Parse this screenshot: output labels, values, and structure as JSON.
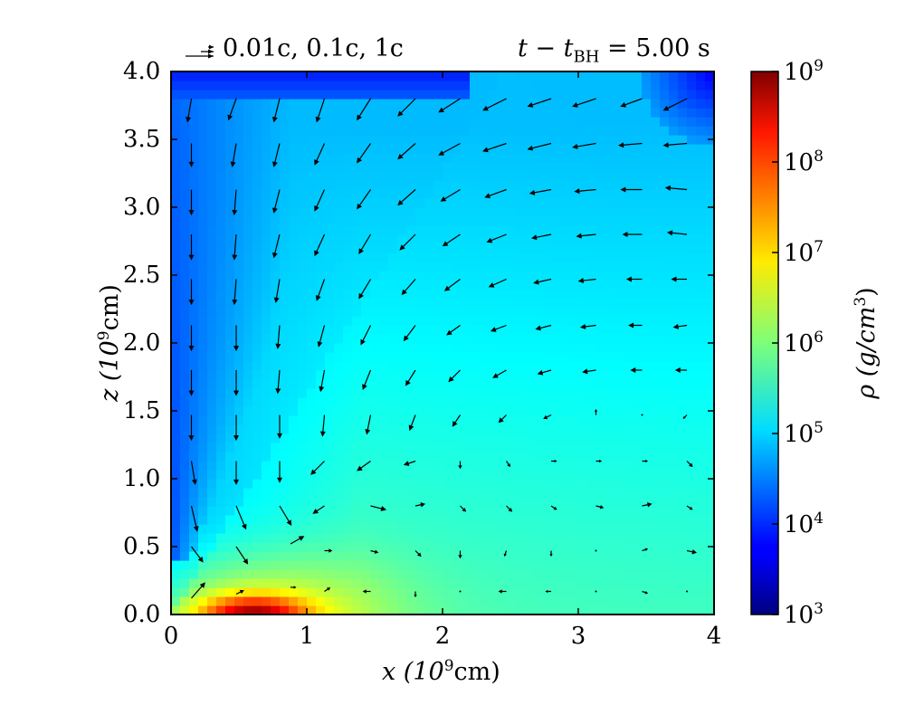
{
  "chart_data": {
    "type": "heatmap",
    "title_left": "0.01c, 0.1c, 1c",
    "title_right": "t − t",
    "title_right_sub": "BH",
    "title_right_value": "= 5.00 s",
    "xlabel": "x (10",
    "xlabel_sup": "9",
    "xlabel_unit": "cm)",
    "ylabel": "z (10",
    "ylabel_sup": "9",
    "ylabel_unit": "cm)",
    "xlim": [
      0,
      4
    ],
    "ylim": [
      0,
      4
    ],
    "xticks": [
      "0",
      "1",
      "2",
      "3",
      "4"
    ],
    "yticks": [
      "0.0",
      "0.5",
      "1.0",
      "1.5",
      "2.0",
      "2.5",
      "3.0",
      "3.5",
      "4.0"
    ],
    "colorbar": {
      "label": "ρ (g/cm",
      "label_sup": "3",
      "label_close": ")",
      "scale": "log",
      "range": [
        3,
        9
      ],
      "tick_exponents": [
        3,
        4,
        5,
        6,
        7,
        8,
        9
      ],
      "tick_base": "10",
      "colormap": "jet"
    },
    "density_log10_field": {
      "description_keys": [
        "background",
        "dense_core",
        "low_density_jet",
        "upper_corner"
      ],
      "background_upper": 4.85,
      "background_lower_right": 5.6,
      "core_peak": 8.7,
      "core_center": [
        0.6,
        0.0
      ],
      "jet_min": 4.15,
      "upper_left_min": 4.3,
      "upper_right_corner_min": 3.7
    },
    "velocity_arrows": [
      {
        "x": 0.15,
        "z": 3.8,
        "vx": -0.002,
        "vz": -0.012
      },
      {
        "x": 0.48,
        "z": 3.8,
        "vx": -0.004,
        "vz": -0.011
      },
      {
        "x": 0.8,
        "z": 3.8,
        "vx": -0.003,
        "vz": -0.012
      },
      {
        "x": 1.13,
        "z": 3.8,
        "vx": -0.004,
        "vz": -0.012
      },
      {
        "x": 1.47,
        "z": 3.8,
        "vx": -0.007,
        "vz": -0.011
      },
      {
        "x": 1.8,
        "z": 3.8,
        "vx": -0.009,
        "vz": -0.009
      },
      {
        "x": 2.13,
        "z": 3.8,
        "vx": -0.011,
        "vz": -0.007
      },
      {
        "x": 2.47,
        "z": 3.8,
        "vx": -0.012,
        "vz": -0.006
      },
      {
        "x": 2.8,
        "z": 3.8,
        "vx": -0.012,
        "vz": -0.004
      },
      {
        "x": 3.13,
        "z": 3.8,
        "vx": -0.012,
        "vz": -0.004
      },
      {
        "x": 3.47,
        "z": 3.8,
        "vx": -0.011,
        "vz": -0.004
      },
      {
        "x": 3.8,
        "z": 3.8,
        "vx": -0.012,
        "vz": -0.006
      },
      {
        "x": 0.15,
        "z": 3.47,
        "vx": 0.0,
        "vz": -0.012
      },
      {
        "x": 0.48,
        "z": 3.47,
        "vx": -0.002,
        "vz": -0.012
      },
      {
        "x": 0.8,
        "z": 3.47,
        "vx": -0.003,
        "vz": -0.012
      },
      {
        "x": 1.13,
        "z": 3.47,
        "vx": -0.005,
        "vz": -0.011
      },
      {
        "x": 1.47,
        "z": 3.47,
        "vx": -0.007,
        "vz": -0.01
      },
      {
        "x": 1.8,
        "z": 3.47,
        "vx": -0.009,
        "vz": -0.008
      },
      {
        "x": 2.13,
        "z": 3.47,
        "vx": -0.011,
        "vz": -0.006
      },
      {
        "x": 2.47,
        "z": 3.47,
        "vx": -0.012,
        "vz": -0.004
      },
      {
        "x": 2.8,
        "z": 3.47,
        "vx": -0.012,
        "vz": -0.003
      },
      {
        "x": 3.13,
        "z": 3.47,
        "vx": -0.012,
        "vz": -0.002
      },
      {
        "x": 3.47,
        "z": 3.47,
        "vx": -0.012,
        "vz": -0.001
      },
      {
        "x": 3.8,
        "z": 3.47,
        "vx": -0.012,
        "vz": -0.001
      },
      {
        "x": 0.15,
        "z": 3.13,
        "vx": 0.0,
        "vz": -0.013
      },
      {
        "x": 0.48,
        "z": 3.13,
        "vx": -0.001,
        "vz": -0.013
      },
      {
        "x": 0.8,
        "z": 3.13,
        "vx": -0.003,
        "vz": -0.012
      },
      {
        "x": 1.13,
        "z": 3.13,
        "vx": -0.005,
        "vz": -0.011
      },
      {
        "x": 1.47,
        "z": 3.13,
        "vx": -0.007,
        "vz": -0.01
      },
      {
        "x": 1.8,
        "z": 3.13,
        "vx": -0.009,
        "vz": -0.008
      },
      {
        "x": 2.13,
        "z": 3.13,
        "vx": -0.01,
        "vz": -0.006
      },
      {
        "x": 2.47,
        "z": 3.13,
        "vx": -0.011,
        "vz": -0.004
      },
      {
        "x": 2.8,
        "z": 3.13,
        "vx": -0.011,
        "vz": -0.002
      },
      {
        "x": 3.13,
        "z": 3.13,
        "vx": -0.011,
        "vz": -0.001
      },
      {
        "x": 3.47,
        "z": 3.13,
        "vx": -0.011,
        "vz": 0.0
      },
      {
        "x": 3.8,
        "z": 3.13,
        "vx": -0.011,
        "vz": 0.001
      },
      {
        "x": 0.15,
        "z": 2.8,
        "vx": 0.0,
        "vz": -0.013
      },
      {
        "x": 0.48,
        "z": 2.8,
        "vx": -0.001,
        "vz": -0.013
      },
      {
        "x": 0.8,
        "z": 2.8,
        "vx": -0.003,
        "vz": -0.012
      },
      {
        "x": 1.13,
        "z": 2.8,
        "vx": -0.005,
        "vz": -0.011
      },
      {
        "x": 1.47,
        "z": 2.8,
        "vx": -0.006,
        "vz": -0.01
      },
      {
        "x": 1.8,
        "z": 2.8,
        "vx": -0.008,
        "vz": -0.008
      },
      {
        "x": 2.13,
        "z": 2.8,
        "vx": -0.009,
        "vz": -0.006
      },
      {
        "x": 2.47,
        "z": 2.8,
        "vx": -0.01,
        "vz": -0.004
      },
      {
        "x": 2.8,
        "z": 2.8,
        "vx": -0.01,
        "vz": -0.002
      },
      {
        "x": 3.13,
        "z": 2.8,
        "vx": -0.01,
        "vz": -0.001
      },
      {
        "x": 3.47,
        "z": 2.8,
        "vx": -0.01,
        "vz": 0.0
      },
      {
        "x": 3.8,
        "z": 2.8,
        "vx": -0.01,
        "vz": 0.001
      },
      {
        "x": 0.15,
        "z": 2.47,
        "vx": 0.0,
        "vz": -0.013
      },
      {
        "x": 0.48,
        "z": 2.47,
        "vx": -0.001,
        "vz": -0.013
      },
      {
        "x": 0.8,
        "z": 2.47,
        "vx": -0.002,
        "vz": -0.012
      },
      {
        "x": 1.13,
        "z": 2.47,
        "vx": -0.004,
        "vz": -0.011
      },
      {
        "x": 1.47,
        "z": 2.47,
        "vx": -0.006,
        "vz": -0.01
      },
      {
        "x": 1.8,
        "z": 2.47,
        "vx": -0.007,
        "vz": -0.008
      },
      {
        "x": 2.13,
        "z": 2.47,
        "vx": -0.008,
        "vz": -0.006
      },
      {
        "x": 2.47,
        "z": 2.47,
        "vx": -0.009,
        "vz": -0.004
      },
      {
        "x": 2.8,
        "z": 2.47,
        "vx": -0.009,
        "vz": -0.002
      },
      {
        "x": 3.13,
        "z": 2.47,
        "vx": -0.009,
        "vz": -0.001
      },
      {
        "x": 3.47,
        "z": 2.47,
        "vx": -0.008,
        "vz": 0.0
      },
      {
        "x": 3.8,
        "z": 2.47,
        "vx": -0.008,
        "vz": 0.0
      },
      {
        "x": 0.15,
        "z": 2.13,
        "vx": 0.0,
        "vz": -0.013
      },
      {
        "x": 0.48,
        "z": 2.13,
        "vx": 0.0,
        "vz": -0.013
      },
      {
        "x": 0.8,
        "z": 2.13,
        "vx": -0.001,
        "vz": -0.012
      },
      {
        "x": 1.13,
        "z": 2.13,
        "vx": -0.003,
        "vz": -0.011
      },
      {
        "x": 1.47,
        "z": 2.13,
        "vx": -0.005,
        "vz": -0.01
      },
      {
        "x": 1.8,
        "z": 2.13,
        "vx": -0.006,
        "vz": -0.008
      },
      {
        "x": 2.13,
        "z": 2.13,
        "vx": -0.007,
        "vz": -0.005
      },
      {
        "x": 2.47,
        "z": 2.13,
        "vx": -0.008,
        "vz": -0.003
      },
      {
        "x": 2.8,
        "z": 2.13,
        "vx": -0.008,
        "vz": -0.002
      },
      {
        "x": 3.13,
        "z": 2.13,
        "vx": -0.008,
        "vz": -0.001
      },
      {
        "x": 3.47,
        "z": 2.13,
        "vx": -0.007,
        "vz": 0.0
      },
      {
        "x": 3.8,
        "z": 2.13,
        "vx": -0.007,
        "vz": -0.001
      },
      {
        "x": 0.15,
        "z": 1.8,
        "vx": 0.0,
        "vz": -0.013
      },
      {
        "x": 0.48,
        "z": 1.8,
        "vx": 0.0,
        "vz": -0.013
      },
      {
        "x": 0.8,
        "z": 1.8,
        "vx": -0.001,
        "vz": -0.012
      },
      {
        "x": 1.13,
        "z": 1.8,
        "vx": -0.002,
        "vz": -0.011
      },
      {
        "x": 1.47,
        "z": 1.8,
        "vx": -0.004,
        "vz": -0.01
      },
      {
        "x": 1.8,
        "z": 1.8,
        "vx": -0.005,
        "vz": -0.008
      },
      {
        "x": 2.13,
        "z": 1.8,
        "vx": -0.006,
        "vz": -0.006
      },
      {
        "x": 2.47,
        "z": 1.8,
        "vx": -0.007,
        "vz": -0.004
      },
      {
        "x": 2.8,
        "z": 1.8,
        "vx": -0.007,
        "vz": -0.002
      },
      {
        "x": 3.13,
        "z": 1.8,
        "vx": -0.007,
        "vz": -0.001
      },
      {
        "x": 3.47,
        "z": 1.8,
        "vx": -0.006,
        "vz": 0.0
      },
      {
        "x": 3.8,
        "z": 1.8,
        "vx": -0.006,
        "vz": 0.0
      },
      {
        "x": 0.15,
        "z": 1.47,
        "vx": 0.0,
        "vz": -0.013
      },
      {
        "x": 0.48,
        "z": 1.47,
        "vx": 0.0,
        "vz": -0.013
      },
      {
        "x": 0.8,
        "z": 1.47,
        "vx": 0.0,
        "vz": -0.012
      },
      {
        "x": 1.13,
        "z": 1.47,
        "vx": -0.001,
        "vz": -0.011
      },
      {
        "x": 1.47,
        "z": 1.47,
        "vx": -0.002,
        "vz": -0.01
      },
      {
        "x": 1.8,
        "z": 1.47,
        "vx": -0.003,
        "vz": -0.008
      },
      {
        "x": 2.13,
        "z": 1.47,
        "vx": -0.004,
        "vz": -0.006
      },
      {
        "x": 2.47,
        "z": 1.47,
        "vx": -0.004,
        "vz": -0.004
      },
      {
        "x": 2.8,
        "z": 1.47,
        "vx": -0.004,
        "vz": -0.002
      },
      {
        "x": 3.13,
        "z": 1.47,
        "vx": 0.0,
        "vz": 0.003
      },
      {
        "x": 3.47,
        "z": 1.47,
        "vx": 0.0,
        "vz": 0.0
      },
      {
        "x": 3.8,
        "z": 1.47,
        "vx": -0.002,
        "vz": -0.002
      },
      {
        "x": 0.15,
        "z": 1.13,
        "vx": 0.002,
        "vz": -0.012
      },
      {
        "x": 0.48,
        "z": 1.13,
        "vx": 0.0,
        "vz": -0.012
      },
      {
        "x": 0.8,
        "z": 1.13,
        "vx": 0.0,
        "vz": -0.011
      },
      {
        "x": 1.13,
        "z": 1.13,
        "vx": -0.007,
        "vz": -0.007
      },
      {
        "x": 1.47,
        "z": 1.13,
        "vx": -0.007,
        "vz": -0.005
      },
      {
        "x": 1.8,
        "z": 1.13,
        "vx": -0.006,
        "vz": -0.002
      },
      {
        "x": 2.13,
        "z": 1.13,
        "vx": 0.0,
        "vz": -0.004
      },
      {
        "x": 2.47,
        "z": 1.13,
        "vx": 0.002,
        "vz": -0.003
      },
      {
        "x": 2.8,
        "z": 1.13,
        "vx": 0.003,
        "vz": 0.0
      },
      {
        "x": 3.13,
        "z": 1.13,
        "vx": 0.003,
        "vz": 0.0
      },
      {
        "x": 3.47,
        "z": 1.13,
        "vx": 0.003,
        "vz": 0.0
      },
      {
        "x": 3.8,
        "z": 1.13,
        "vx": 0.003,
        "vz": -0.003
      },
      {
        "x": 0.15,
        "z": 0.8,
        "vx": 0.003,
        "vz": -0.013
      },
      {
        "x": 0.48,
        "z": 0.8,
        "vx": 0.005,
        "vz": -0.012
      },
      {
        "x": 0.8,
        "z": 0.8,
        "vx": 0.006,
        "vz": -0.01
      },
      {
        "x": 1.13,
        "z": 0.8,
        "vx": -0.006,
        "vz": -0.004
      },
      {
        "x": 1.47,
        "z": 0.8,
        "vx": 0.008,
        "vz": -0.002
      },
      {
        "x": 1.8,
        "z": 0.8,
        "vx": 0.005,
        "vz": 0.001
      },
      {
        "x": 2.13,
        "z": 0.8,
        "vx": 0.003,
        "vz": -0.003
      },
      {
        "x": 2.47,
        "z": 0.8,
        "vx": 0.003,
        "vz": -0.003
      },
      {
        "x": 2.8,
        "z": 0.8,
        "vx": 0.003,
        "vz": -0.002
      },
      {
        "x": 3.13,
        "z": 0.8,
        "vx": 0.004,
        "vz": -0.001
      },
      {
        "x": 3.47,
        "z": 0.8,
        "vx": 0.005,
        "vz": 0.001
      },
      {
        "x": 3.8,
        "z": 0.8,
        "vx": 0.003,
        "vz": -0.002
      },
      {
        "x": 0.15,
        "z": 0.5,
        "vx": 0.006,
        "vz": -0.008
      },
      {
        "x": 0.48,
        "z": 0.5,
        "vx": 0.006,
        "vz": -0.009
      },
      {
        "x": 0.88,
        "z": 0.52,
        "vx": 0.007,
        "vz": 0.004
      },
      {
        "x": 1.13,
        "z": 0.47,
        "vx": 0.004,
        "vz": 0.0
      },
      {
        "x": 1.47,
        "z": 0.47,
        "vx": 0.004,
        "vz": -0.001
      },
      {
        "x": 1.8,
        "z": 0.47,
        "vx": 0.003,
        "vz": -0.003
      },
      {
        "x": 2.13,
        "z": 0.47,
        "vx": 0.0,
        "vz": -0.004
      },
      {
        "x": 2.47,
        "z": 0.47,
        "vx": -0.001,
        "vz": -0.003
      },
      {
        "x": 2.8,
        "z": 0.47,
        "vx": 0.0,
        "vz": -0.003
      },
      {
        "x": 3.13,
        "z": 0.47,
        "vx": 0.0,
        "vz": 0.0
      },
      {
        "x": 3.47,
        "z": 0.47,
        "vx": 0.003,
        "vz": 0.001
      },
      {
        "x": 3.8,
        "z": 0.47,
        "vx": 0.005,
        "vz": -0.001
      },
      {
        "x": 0.15,
        "z": 0.12,
        "vx": 0.007,
        "vz": 0.008
      },
      {
        "x": 0.48,
        "z": 0.15,
        "vx": 0.004,
        "vz": 0.002
      },
      {
        "x": 0.88,
        "z": 0.2,
        "vx": 0.003,
        "vz": 0.0
      },
      {
        "x": 1.13,
        "z": 0.17,
        "vx": 0.003,
        "vz": 0.002
      },
      {
        "x": 1.47,
        "z": 0.17,
        "vx": -0.004,
        "vz": 0.0
      },
      {
        "x": 1.8,
        "z": 0.17,
        "vx": 0.0,
        "vz": -0.003
      },
      {
        "x": 2.13,
        "z": 0.17,
        "vx": 0.0,
        "vz": 0.0
      },
      {
        "x": 2.47,
        "z": 0.17,
        "vx": -0.004,
        "vz": 0.0
      },
      {
        "x": 2.8,
        "z": 0.17,
        "vx": -0.003,
        "vz": 0.0
      },
      {
        "x": 3.13,
        "z": 0.17,
        "vx": 0.0,
        "vz": 0.0
      },
      {
        "x": 3.47,
        "z": 0.17,
        "vx": 0.003,
        "vz": -0.001
      },
      {
        "x": 3.8,
        "z": 0.17,
        "vx": 0.0,
        "vz": 0.0
      }
    ]
  }
}
